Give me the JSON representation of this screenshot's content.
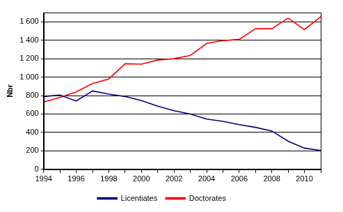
{
  "chart_data": {
    "type": "line",
    "y_label": "Nbr",
    "categories": [
      "1994",
      null,
      "1996",
      null,
      "1998",
      null,
      "2000",
      null,
      "2002",
      null,
      "2004",
      null,
      "2006",
      null,
      "2008",
      null,
      "2010",
      null
    ],
    "series": [
      {
        "name": "Licentiates",
        "color": "#000080",
        "marker": "none",
        "values": [
          790,
          805,
          740,
          850,
          815,
          790,
          745,
          685,
          635,
          600,
          545,
          520,
          485,
          455,
          415,
          305,
          230,
          205
        ]
      },
      {
        "name": "Doctorates",
        "color": "#ff0000",
        "marker": "none",
        "values": [
          730,
          780,
          840,
          930,
          980,
          1145,
          1140,
          1185,
          1200,
          1235,
          1365,
          1395,
          1410,
          1525,
          1525,
          1640,
          1515,
          1655
        ]
      }
    ],
    "ylim": [
      0,
      1700
    ],
    "yticks": [
      0,
      200,
      400,
      600,
      800,
      {
        "value": 1000,
        "label": "1 000"
      },
      {
        "value": 1200,
        "label": "1 200"
      },
      {
        "value": 1400,
        "label": "1 400"
      },
      {
        "value": 1600,
        "label": "1 600"
      }
    ],
    "grid": true,
    "legend": "bottom"
  }
}
